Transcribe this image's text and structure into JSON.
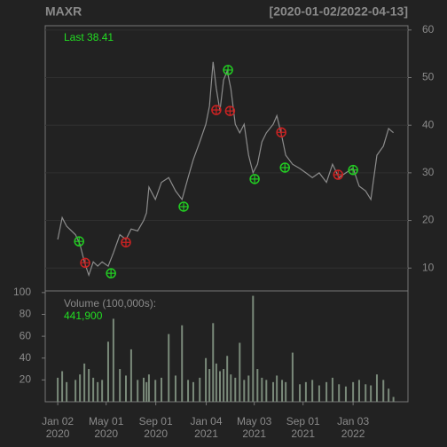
{
  "chart_data": {
    "type": "line",
    "title": "MAXR",
    "subtitle": "[2020-01-02/2022-04-13]",
    "last_label": "Last 38.41",
    "x": [
      "2020-01-02",
      "2020-01-13",
      "2020-01-24",
      "2020-02-15",
      "2020-02-26",
      "2020-03-08",
      "2020-03-19",
      "2020-03-30",
      "2020-04-10",
      "2020-04-21",
      "2020-05-06",
      "2020-05-19",
      "2020-06-04",
      "2020-06-19",
      "2020-07-02",
      "2020-07-18",
      "2020-08-02",
      "2020-08-09",
      "2020-08-15",
      "2020-08-31",
      "2020-09-15",
      "2020-10-03",
      "2020-10-20",
      "2020-11-05",
      "2020-11-20",
      "2020-12-03",
      "2020-12-19",
      "2021-01-03",
      "2021-01-12",
      "2021-01-21",
      "2021-01-29",
      "2021-02-07",
      "2021-02-16",
      "2021-02-25",
      "2021-03-06",
      "2021-03-17",
      "2021-03-28",
      "2021-04-08",
      "2021-04-19",
      "2021-04-30",
      "2021-05-11",
      "2021-05-22",
      "2021-06-02",
      "2021-06-19",
      "2021-06-28",
      "2021-07-11",
      "2021-07-20",
      "2021-08-06",
      "2021-08-24",
      "2021-09-08",
      "2021-09-24",
      "2021-10-11",
      "2021-10-29",
      "2021-11-13",
      "2021-11-29",
      "2021-12-16",
      "2022-01-03",
      "2022-01-18",
      "2022-02-03",
      "2022-02-16",
      "2022-03-03",
      "2022-03-19",
      "2022-04-01",
      "2022-04-13"
    ],
    "series": [
      {
        "color": "#8c8c8c",
        "values": [
          16,
          20.6,
          18.8,
          17,
          15,
          11.3,
          8.5,
          11.3,
          10.4,
          11.3,
          10.4,
          13.2,
          17,
          16,
          18.2,
          17.8,
          20,
          21.6,
          27,
          24.4,
          28,
          29,
          26.2,
          24.4,
          29,
          32.8,
          36.5,
          40.2,
          44,
          53.3,
          47.7,
          43,
          49.5,
          51.4,
          47.7,
          40.2,
          38.4,
          40.2,
          33.7,
          30,
          31.8,
          36.5,
          38.4,
          40.2,
          42,
          37.4,
          33.7,
          31.8,
          30.9,
          30,
          29,
          30,
          28,
          31.8,
          29,
          30,
          31,
          27.2,
          26.2,
          24.4,
          33.7,
          35.6,
          39.3,
          38.41
        ]
      }
    ],
    "markers": [
      {
        "color": "#22cc22",
        "x": [
          "2020-02-24",
          "2020-05-13",
          "2020-11-09",
          "2021-02-27",
          "2021-05-04",
          "2021-07-18",
          "2022-01-03"
        ],
        "y": [
          15.6,
          8.9,
          22.9,
          51.6,
          28.7,
          31.1,
          30.6
        ]
      },
      {
        "color": "#cc2222",
        "x": [
          "2020-03-10",
          "2020-06-19",
          "2021-01-29",
          "2021-03-04",
          "2021-07-09",
          "2021-11-27"
        ],
        "y": [
          11.1,
          15.4,
          43.2,
          43,
          38.5,
          29.6
        ]
      }
    ],
    "xlim": [
      "2019-12-02",
      "2022-05-19"
    ],
    "xticks": [
      {
        "value": "2020-01-02",
        "label": [
          "Jan 02",
          "2020"
        ]
      },
      {
        "value": "2020-05-01",
        "label": [
          "May 01",
          "2020"
        ]
      },
      {
        "value": "2020-09-01",
        "label": [
          "Sep 01",
          "2020"
        ]
      },
      {
        "value": "2021-01-04",
        "label": [
          "Jan 04",
          "2021"
        ]
      },
      {
        "value": "2021-05-03",
        "label": [
          "May 03",
          "2021"
        ]
      },
      {
        "value": "2021-09-01",
        "label": [
          "Sep 01",
          "2021"
        ]
      },
      {
        "value": "2022-01-03",
        "label": [
          "Jan 03",
          "2022"
        ]
      }
    ],
    "ylim": [
      5.2,
      60.9
    ],
    "yticks": [
      10,
      20,
      30,
      40,
      50,
      60
    ],
    "grid": true,
    "volume": {
      "type": "bar",
      "label": "Volume (100,000s):",
      "last": "441,900",
      "color": "#7a8a7a",
      "values": [
        22,
        28,
        18,
        20,
        25,
        35,
        30,
        22,
        18,
        20,
        55,
        76,
        30,
        24,
        48,
        20,
        22,
        18,
        25,
        20,
        22,
        62,
        24,
        70,
        20,
        18,
        22,
        40,
        30,
        72,
        35,
        28,
        30,
        42,
        25,
        22,
        54,
        20,
        24,
        97,
        30,
        22,
        20,
        18,
        24,
        20,
        18,
        45,
        16,
        18,
        20,
        15,
        18,
        22,
        16,
        14,
        18,
        20,
        16,
        15,
        25,
        20,
        12,
        4.419
      ],
      "ylim": [
        0,
        101.5
      ],
      "yticks": [
        20,
        40,
        60,
        80,
        100
      ]
    }
  }
}
